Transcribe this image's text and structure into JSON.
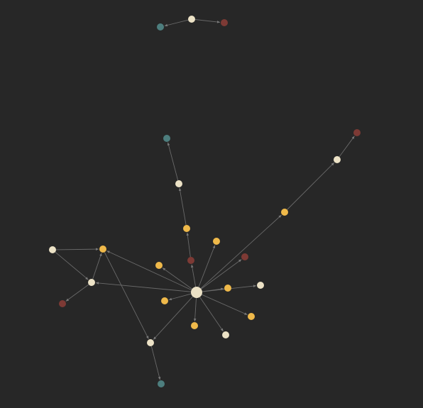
{
  "graph_view": {
    "background": "#272727",
    "edge_color": "#6a6a6a",
    "arrows": true,
    "palette": {
      "cream": "#ece2c6",
      "gold": "#efb94a",
      "teal": "#4d7e7e",
      "brown": "#7d3a35"
    },
    "nodes": [
      {
        "id": "n1",
        "color": "cream"
      },
      {
        "id": "n2",
        "color": "teal"
      },
      {
        "id": "n3",
        "color": "brown"
      },
      {
        "id": "n4",
        "color": "teal"
      },
      {
        "id": "n5",
        "color": "cream"
      },
      {
        "id": "n6",
        "color": "gold"
      },
      {
        "id": "n7",
        "color": "brown"
      },
      {
        "id": "n8",
        "color": "cream"
      },
      {
        "id": "n9",
        "color": "gold"
      },
      {
        "id": "n10",
        "color": "gold"
      },
      {
        "id": "n11",
        "color": "brown"
      },
      {
        "id": "n12",
        "color": "brown"
      },
      {
        "id": "n13",
        "color": "gold"
      },
      {
        "id": "n14",
        "color": "cream"
      },
      {
        "id": "n15",
        "color": "gold"
      },
      {
        "id": "n16",
        "color": "cream"
      },
      {
        "id": "n17",
        "color": "cream"
      },
      {
        "id": "n18",
        "color": "gold"
      },
      {
        "id": "n19",
        "color": "gold"
      },
      {
        "id": "n20",
        "color": "gold"
      },
      {
        "id": "n21",
        "color": "brown"
      },
      {
        "id": "n22",
        "color": "gold"
      },
      {
        "id": "n23",
        "color": "cream"
      },
      {
        "id": "n24",
        "color": "cream"
      },
      {
        "id": "n25",
        "color": "teal"
      },
      {
        "id": "hub",
        "color": "cream"
      }
    ],
    "edges": [
      {
        "from": "n1",
        "to": "n2"
      },
      {
        "from": "n1",
        "to": "n3"
      },
      {
        "from": "n5",
        "to": "n4"
      },
      {
        "from": "n6",
        "to": "n5"
      },
      {
        "from": "n7",
        "to": "n6"
      },
      {
        "from": "hub",
        "to": "n7"
      },
      {
        "from": "n8",
        "to": "n11"
      },
      {
        "from": "n9",
        "to": "n8"
      },
      {
        "from": "hub",
        "to": "n9"
      },
      {
        "from": "hub",
        "to": "n10"
      },
      {
        "from": "hub",
        "to": "n12"
      },
      {
        "from": "hub",
        "to": "n13"
      },
      {
        "from": "hub",
        "to": "n15"
      },
      {
        "from": "hub",
        "to": "n16"
      },
      {
        "from": "hub",
        "to": "n18"
      },
      {
        "from": "hub",
        "to": "n19"
      },
      {
        "from": "hub",
        "to": "n20"
      },
      {
        "from": "hub",
        "to": "n22"
      },
      {
        "from": "hub",
        "to": "n23"
      },
      {
        "from": "hub",
        "to": "n24"
      },
      {
        "from": "hub",
        "to": "n17"
      },
      {
        "from": "n14",
        "to": "n15"
      },
      {
        "from": "n14",
        "to": "n17"
      },
      {
        "from": "n17",
        "to": "n15"
      },
      {
        "from": "n17",
        "to": "n21"
      },
      {
        "from": "n15",
        "to": "n24"
      },
      {
        "from": "n24",
        "to": "n25"
      }
    ]
  }
}
